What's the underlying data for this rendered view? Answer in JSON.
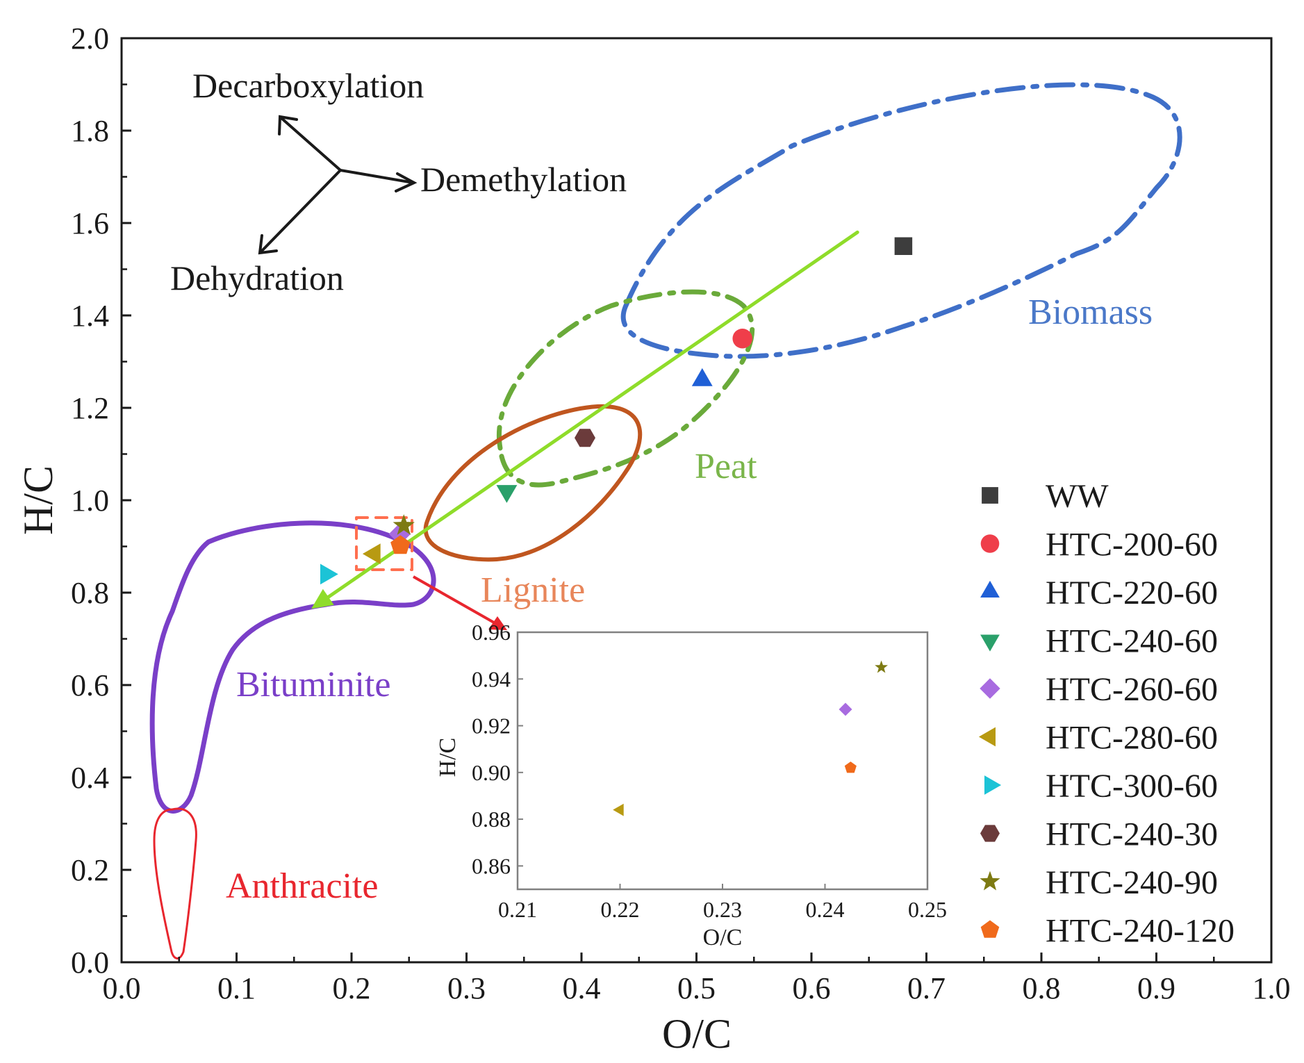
{
  "chart_data": {
    "type": "scatter",
    "xlabel": "O/C",
    "ylabel": "H/C",
    "xlim": [
      0.0,
      1.0
    ],
    "ylim": [
      0.0,
      2.0
    ],
    "x_ticks": [
      "0.0",
      "0.1",
      "0.2",
      "0.3",
      "0.4",
      "0.5",
      "0.6",
      "0.7",
      "0.8",
      "0.9",
      "1.0"
    ],
    "y_ticks": [
      "0.0",
      "0.2",
      "0.4",
      "0.6",
      "0.8",
      "1.0",
      "1.2",
      "1.4",
      "1.6",
      "1.8",
      "2.0"
    ],
    "series": [
      {
        "name": "WW",
        "marker": "square",
        "color": "#3d3d3d",
        "x": 0.68,
        "y": 1.55
      },
      {
        "name": "HTC-200-60",
        "marker": "circle",
        "color": "#ef3e4a",
        "x": 0.54,
        "y": 1.35
      },
      {
        "name": "HTC-220-60",
        "marker": "triangle-up",
        "color": "#1f5fd6",
        "x": 0.505,
        "y": 1.26
      },
      {
        "name": "HTC-240-60",
        "marker": "triangle-down",
        "color": "#2aa06a",
        "x": 0.335,
        "y": 1.02
      },
      {
        "name": "HTC-260-60",
        "marker": "diamond",
        "color": "#a86be0",
        "x": 0.242,
        "y": 0.927
      },
      {
        "name": "HTC-280-60",
        "marker": "triangle-left",
        "color": "#b89a12",
        "x": 0.22,
        "y": 0.884
      },
      {
        "name": "HTC-300-60",
        "marker": "triangle-right",
        "color": "#1cc3d6",
        "x": 0.178,
        "y": 0.84
      },
      {
        "name": "HTC-240-30",
        "marker": "hexagon",
        "color": "#6b3b3b",
        "x": 0.403,
        "y": 1.135
      },
      {
        "name": "HTC-240-90",
        "marker": "star",
        "color": "#7d7a12",
        "x": 0.2455,
        "y": 0.945
      },
      {
        "name": "HTC-240-120",
        "marker": "pentagon",
        "color": "#f06a1b",
        "x": 0.2425,
        "y": 0.902
      }
    ],
    "regions": [
      {
        "label": "Biomass",
        "color": "#3f6fc8",
        "style": "dash-dot"
      },
      {
        "label": "Peat",
        "color": "#6aaa3a",
        "style": "dash-dot"
      },
      {
        "label": "Lignite",
        "color": "#c0561f",
        "label_color": "#e8865a",
        "style": "solid"
      },
      {
        "label": "Bituminite",
        "color": "#7a3fc8",
        "label_color": "#7a3fc8",
        "style": "solid"
      },
      {
        "label": "Anthracite",
        "color": "#e8262e",
        "label_color": "#e8262e",
        "style": "solid"
      }
    ],
    "trend_line": {
      "color": "#8fdc2a",
      "from": [
        0.64,
        1.58
      ],
      "to": [
        0.165,
        0.765
      ]
    },
    "annotations": [
      "Decarboxylation",
      "Demethylation",
      "Dehydration"
    ],
    "inset": {
      "xlabel": "O/C",
      "ylabel": "H/C",
      "xlim": [
        0.21,
        0.25
      ],
      "ylim": [
        0.85,
        0.96
      ],
      "x_ticks": [
        "0.21",
        "0.22",
        "0.23",
        "0.24",
        "0.25"
      ],
      "y_ticks": [
        "0.86",
        "0.88",
        "0.90",
        "0.92",
        "0.94",
        "0.96"
      ],
      "points": [
        {
          "name": "HTC-280-60",
          "x": 0.22,
          "y": 0.884
        },
        {
          "name": "HTC-260-60",
          "x": 0.242,
          "y": 0.927
        },
        {
          "name": "HTC-240-90",
          "x": 0.2455,
          "y": 0.945
        },
        {
          "name": "HTC-240-120",
          "x": 0.2425,
          "y": 0.902
        }
      ]
    }
  }
}
